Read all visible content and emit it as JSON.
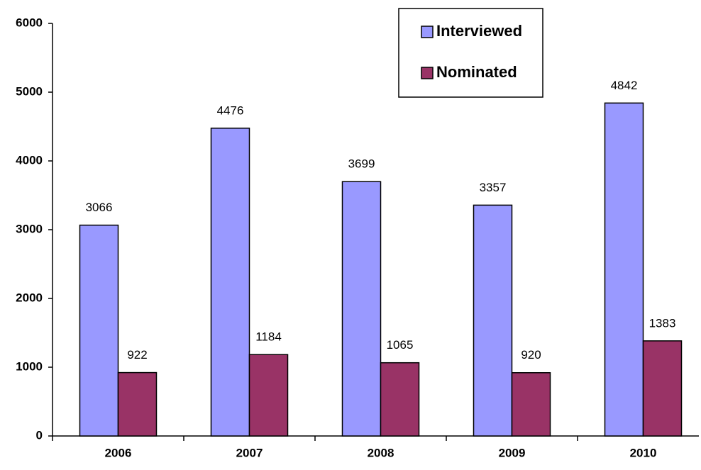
{
  "chart_data": {
    "type": "bar",
    "categories": [
      "2006",
      "2007",
      "2008",
      "2009",
      "2010"
    ],
    "series": [
      {
        "name": "Interviewed",
        "color": "#9999ff",
        "values": [
          3066,
          4476,
          3699,
          3357,
          4842
        ]
      },
      {
        "name": "Nominated",
        "color": "#993366",
        "values": [
          922,
          1184,
          1065,
          920,
          1383
        ]
      }
    ],
    "ylim": [
      0,
      6000
    ],
    "yticks": [
      0,
      1000,
      2000,
      3000,
      4000,
      5000,
      6000
    ],
    "legend": "top-right"
  }
}
